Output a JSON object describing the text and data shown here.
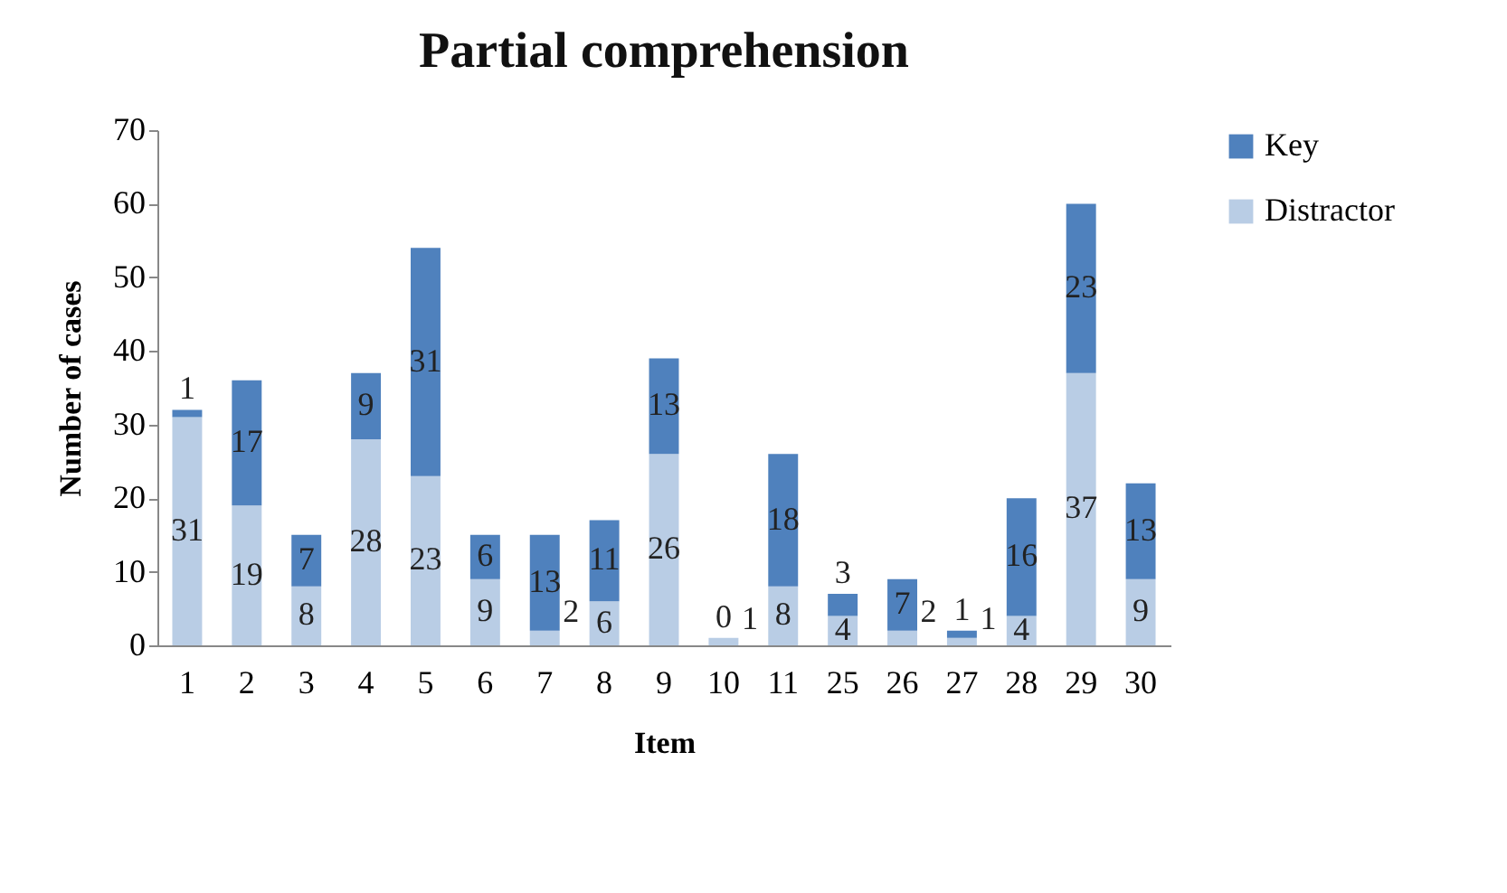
{
  "chart_data": {
    "type": "bar",
    "title": "Partial comprehension",
    "xlabel": "Item",
    "ylabel": "Number of cases",
    "categories": [
      "1",
      "2",
      "3",
      "4",
      "5",
      "6",
      "7",
      "8",
      "9",
      "10",
      "11",
      "25",
      "26",
      "27",
      "28",
      "29",
      "30"
    ],
    "series": [
      {
        "name": "Distractor",
        "color": "#b9cde5",
        "values": [
          31,
          19,
          8,
          28,
          23,
          9,
          2,
          6,
          26,
          1,
          8,
          4,
          2,
          1,
          4,
          37,
          9
        ]
      },
      {
        "name": "Key",
        "color": "#4f81bd",
        "values": [
          1,
          17,
          7,
          9,
          31,
          6,
          13,
          11,
          13,
          0,
          18,
          3,
          7,
          1,
          16,
          23,
          13
        ]
      }
    ],
    "stacked": true,
    "data_labels": true,
    "ylim": [
      0,
      70
    ],
    "yticks": [
      0,
      10,
      20,
      30,
      40,
      50,
      60,
      70
    ],
    "grid": false,
    "legend": "right"
  }
}
